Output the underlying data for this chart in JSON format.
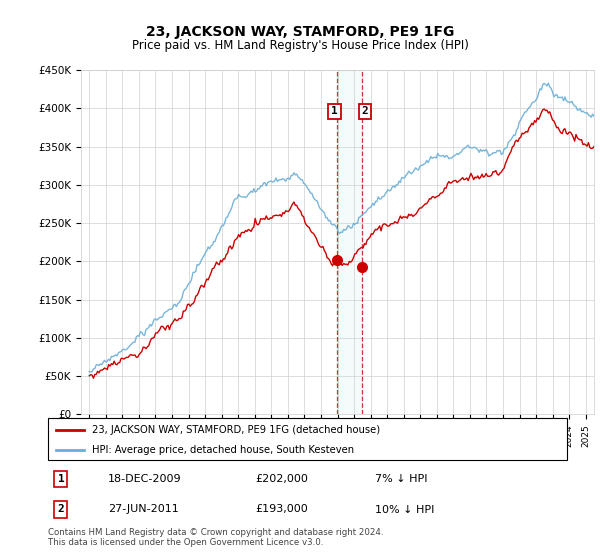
{
  "title": "23, JACKSON WAY, STAMFORD, PE9 1FG",
  "subtitle": "Price paid vs. HM Land Registry's House Price Index (HPI)",
  "legend_line1": "23, JACKSON WAY, STAMFORD, PE9 1FG (detached house)",
  "legend_line2": "HPI: Average price, detached house, South Kesteven",
  "transaction1_date": "18-DEC-2009",
  "transaction1_price": "£202,000",
  "transaction1_hpi": "7% ↓ HPI",
  "transaction2_date": "27-JUN-2011",
  "transaction2_price": "£193,000",
  "transaction2_hpi": "10% ↓ HPI",
  "footer": "Contains HM Land Registry data © Crown copyright and database right 2024.\nThis data is licensed under the Open Government Licence v3.0.",
  "hpi_color": "#6baed6",
  "price_color": "#cc0000",
  "marker1_x": 2009.96,
  "marker2_x": 2011.5,
  "ylim_bottom": 0,
  "ylim_top": 450000,
  "xlim_left": 1994.5,
  "xlim_right": 2025.5,
  "yticks": [
    0,
    50000,
    100000,
    150000,
    200000,
    250000,
    300000,
    350000,
    400000,
    450000
  ],
  "ytick_labels": [
    "£0",
    "£50K",
    "£100K",
    "£150K",
    "£200K",
    "£250K",
    "£300K",
    "£350K",
    "£400K",
    "£450K"
  ]
}
